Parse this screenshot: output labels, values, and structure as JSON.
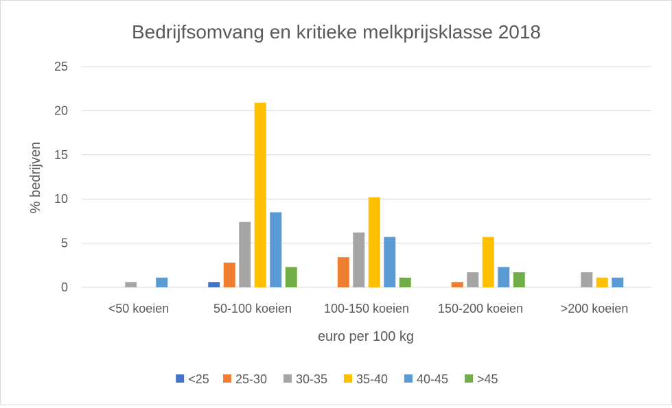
{
  "chart_data": {
    "type": "bar",
    "title": "Bedrijfsomvang en kritieke melkprijsklasse 2018",
    "xlabel": "euro per 100 kg",
    "ylabel": "% bedrijven",
    "ylim": [
      0,
      25
    ],
    "yticks": [
      "0",
      "5",
      "10",
      "15",
      "20",
      "25"
    ],
    "grid": true,
    "legend_position": "bottom",
    "categories": [
      "<50 koeien",
      "50-100 koeien",
      "100-150 koeien",
      "150-200  koeien",
      ">200 koeien"
    ],
    "series": [
      {
        "name": "<25",
        "color": "#4472C4",
        "values": [
          0,
          0.6,
          0,
          0,
          0
        ]
      },
      {
        "name": "25-30",
        "color": "#ED7D31",
        "values": [
          0,
          2.8,
          3.4,
          0.6,
          0
        ]
      },
      {
        "name": "30-35",
        "color": "#A5A5A5",
        "values": [
          0.6,
          7.4,
          6.2,
          1.7,
          1.7
        ]
      },
      {
        "name": "35-40",
        "color": "#FFC000",
        "values": [
          0,
          20.9,
          10.2,
          5.7,
          1.1
        ]
      },
      {
        "name": "40-45",
        "color": "#5B9BD5",
        "values": [
          1.1,
          8.5,
          5.7,
          2.3,
          1.1
        ]
      },
      {
        "name": ">45",
        "color": "#70AD47",
        "values": [
          0,
          2.3,
          1.1,
          1.7,
          0
        ]
      }
    ]
  }
}
